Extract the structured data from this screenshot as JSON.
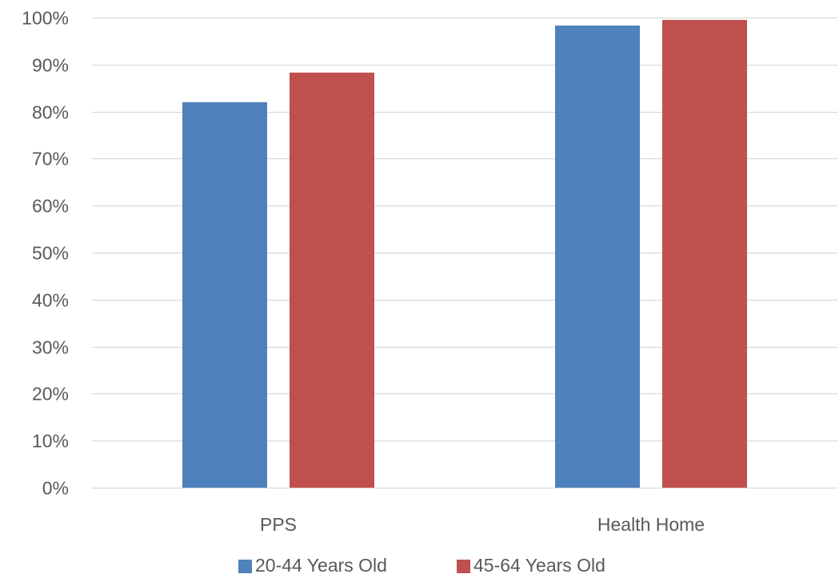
{
  "chart_data": {
    "type": "bar",
    "categories": [
      "PPS",
      "Health Home"
    ],
    "series": [
      {
        "name": "20-44 Years Old",
        "values": [
          82,
          98.3
        ],
        "color": "#4f81bd"
      },
      {
        "name": "45-64 Years Old",
        "values": [
          88.3,
          99.5
        ],
        "color": "#c0504d"
      }
    ],
    "ylim": [
      0,
      100
    ],
    "yticks": [
      0,
      10,
      20,
      30,
      40,
      50,
      60,
      70,
      80,
      90,
      100
    ],
    "y_tick_format": "percent",
    "grid": true,
    "legend_position": "bottom"
  },
  "colors": {
    "gridline": "#d9d9d9",
    "text": "#595959"
  }
}
